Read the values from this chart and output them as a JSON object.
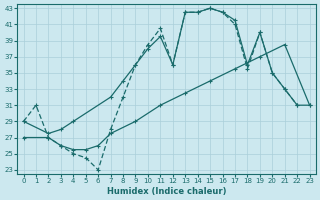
{
  "bg_color": "#cce8ef",
  "grid_color": "#aacfda",
  "line_color": "#1a6b6b",
  "xlabel": "Humidex (Indice chaleur)",
  "xlim": [
    -0.5,
    23.5
  ],
  "ylim": [
    22.5,
    43.5
  ],
  "xticks": [
    0,
    1,
    2,
    3,
    4,
    5,
    6,
    7,
    8,
    9,
    10,
    11,
    12,
    13,
    14,
    15,
    16,
    17,
    18,
    19,
    20,
    21,
    22,
    23
  ],
  "yticks": [
    23,
    25,
    27,
    29,
    31,
    33,
    35,
    37,
    39,
    41,
    43
  ],
  "curve1_x": [
    0,
    1,
    2,
    3,
    4,
    5,
    6,
    7,
    8,
    9,
    10,
    11,
    12,
    13,
    14,
    15,
    16,
    17,
    18,
    19,
    20,
    21,
    22
  ],
  "curve1_y": [
    29,
    31,
    27,
    26,
    25,
    24.5,
    23,
    28,
    32,
    36,
    38.5,
    40.5,
    36,
    42.5,
    42.5,
    43,
    42.5,
    41,
    35.5,
    40,
    35,
    33,
    31
  ],
  "curve2_x": [
    0,
    2,
    3,
    4,
    7,
    8,
    9,
    10,
    11,
    12,
    13,
    14,
    15,
    16,
    17,
    18,
    19,
    20,
    21,
    22,
    23
  ],
  "curve2_y": [
    29,
    27.5,
    28,
    29,
    32,
    34,
    36,
    38,
    39.5,
    36,
    42.5,
    42.5,
    43,
    42.5,
    41.5,
    36,
    40,
    35,
    33,
    31,
    31
  ],
  "curve3_x": [
    0,
    2,
    3,
    4,
    5,
    6,
    7,
    9,
    11,
    13,
    15,
    17,
    19,
    21,
    23
  ],
  "curve3_y": [
    27,
    27,
    26,
    25.5,
    25.5,
    26,
    27.5,
    29,
    31,
    32.5,
    34,
    35.5,
    37,
    38.5,
    31
  ]
}
